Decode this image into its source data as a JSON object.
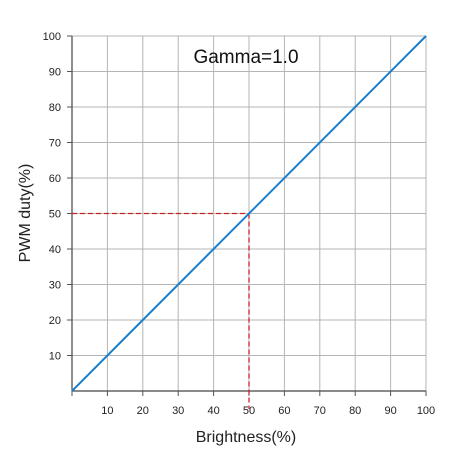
{
  "chart_data": {
    "type": "line",
    "title": "Gamma=1.0",
    "xlabel": "Brightness(%)",
    "ylabel": "PWM duty(%)",
    "xlim": [
      0,
      100
    ],
    "ylim": [
      0,
      100
    ],
    "x_ticks": [
      10,
      20,
      30,
      40,
      50,
      60,
      70,
      80,
      90,
      100
    ],
    "y_ticks": [
      10,
      20,
      30,
      40,
      50,
      60,
      70,
      80,
      90,
      100
    ],
    "grid": true,
    "series": [
      {
        "x": [
          0,
          100
        ],
        "y": [
          0,
          100
        ],
        "color": "#1a7ecb"
      }
    ],
    "reference_lines": {
      "x": 50,
      "y": 50,
      "color": "#cc2222",
      "style": "dashed"
    }
  }
}
